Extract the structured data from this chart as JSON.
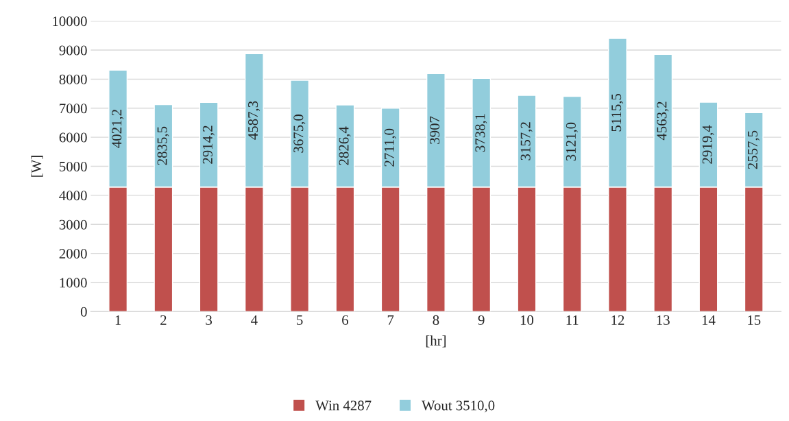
{
  "chart_data": {
    "type": "bar",
    "stacked": true,
    "xlabel": "[hr]",
    "ylabel": "[W]",
    "categories": [
      "1",
      "2",
      "3",
      "4",
      "5",
      "6",
      "7",
      "8",
      "9",
      "10",
      "11",
      "12",
      "13",
      "14",
      "15"
    ],
    "series": [
      {
        "name": "Win 4287",
        "color": "#c0504d",
        "values": [
          4287,
          4287,
          4287,
          4287,
          4287,
          4287,
          4287,
          4287,
          4287,
          4287,
          4287,
          4287,
          4287,
          4287,
          4287
        ]
      },
      {
        "name": "Wout 3510,0",
        "color": "#92cddc",
        "values": [
          4021.2,
          2835.5,
          2914.2,
          4587.3,
          3675.0,
          2826.4,
          2711.0,
          3907,
          3738.1,
          3157.2,
          3121.0,
          5115.5,
          4563.2,
          2919.4,
          2557.5
        ],
        "value_labels": [
          "4021,2",
          "2835,5",
          "2914,2",
          "4587,3",
          "3675,0",
          "2826,4",
          "2711,0",
          "3907",
          "3738,1",
          "3157,2",
          "3121,0",
          "5115,5",
          "4563,2",
          "2919,4",
          "2557,5"
        ]
      }
    ],
    "ylim": [
      0,
      10000
    ],
    "yticks": [
      0,
      1000,
      2000,
      3000,
      4000,
      5000,
      6000,
      7000,
      8000,
      9000,
      10000
    ],
    "grid": "y",
    "legend": "bottom"
  }
}
